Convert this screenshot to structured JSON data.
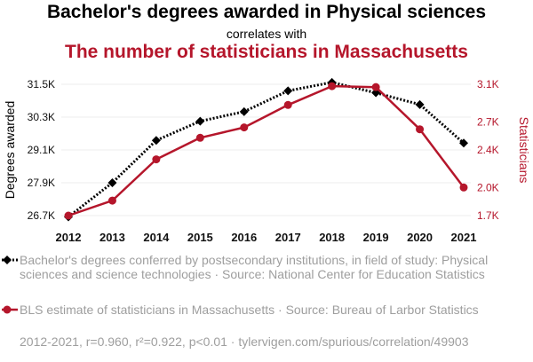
{
  "header": {
    "title": "Bachelor's degrees awarded in Physical sciences",
    "subtitle": "correlates with",
    "title2": "The number of statisticians in Massachusetts"
  },
  "chart_data": {
    "type": "line",
    "x": [
      2012,
      2013,
      2014,
      2015,
      2016,
      2017,
      2018,
      2019,
      2020,
      2021
    ],
    "series": [
      {
        "name": "Bachelor's degrees conferred by postsecondary institutions, in field of study: Physical sciences and science technologies · Source: National Center for Education Statistics",
        "axis": "left",
        "color": "#000000",
        "marker": "diamond",
        "line": "dotted",
        "values": [
          26650,
          27900,
          29450,
          30150,
          30500,
          31260,
          31570,
          31190,
          30760,
          29350
        ]
      },
      {
        "name": "BLS estimate of statisticians in Massachusetts · Source: Bureau of Larbor Statistics",
        "axis": "right",
        "color": "#b5162b",
        "marker": "circle",
        "line": "solid",
        "values": [
          1700,
          1860,
          2300,
          2530,
          2640,
          2880,
          3080,
          3070,
          2620,
          2000
        ]
      }
    ],
    "ylabel_left": "Degrees awarded",
    "ylabel_right": "Statisticians",
    "left_axis": {
      "ticks": [
        26700,
        27900,
        29100,
        30300,
        31500
      ],
      "tick_labels": [
        "26.7K",
        "27.9K",
        "29.1K",
        "30.3K",
        "31.5K"
      ],
      "range": [
        26700,
        31500
      ]
    },
    "right_axis": {
      "ticks": [
        1700,
        2000,
        2400,
        2700,
        3100
      ],
      "tick_labels": [
        "1.7K",
        "2.0K",
        "2.4K",
        "2.7K",
        "3.1K"
      ],
      "range": [
        1700,
        3100
      ]
    },
    "grid": "horizontal",
    "legend_position": "bottom"
  },
  "legend": {
    "items": [
      "Bachelor's degrees conferred by postsecondary institutions, in field of study: Physical sciences and science technologies · Source: National Center for Education Statistics",
      "BLS estimate of statisticians in Massachusetts · Source: Bureau of Larbor Statistics"
    ]
  },
  "footer": "2012-2021, r=0.960, r²=0.922, p<0.01 · tylervigen.com/spurious/correlation/49903"
}
